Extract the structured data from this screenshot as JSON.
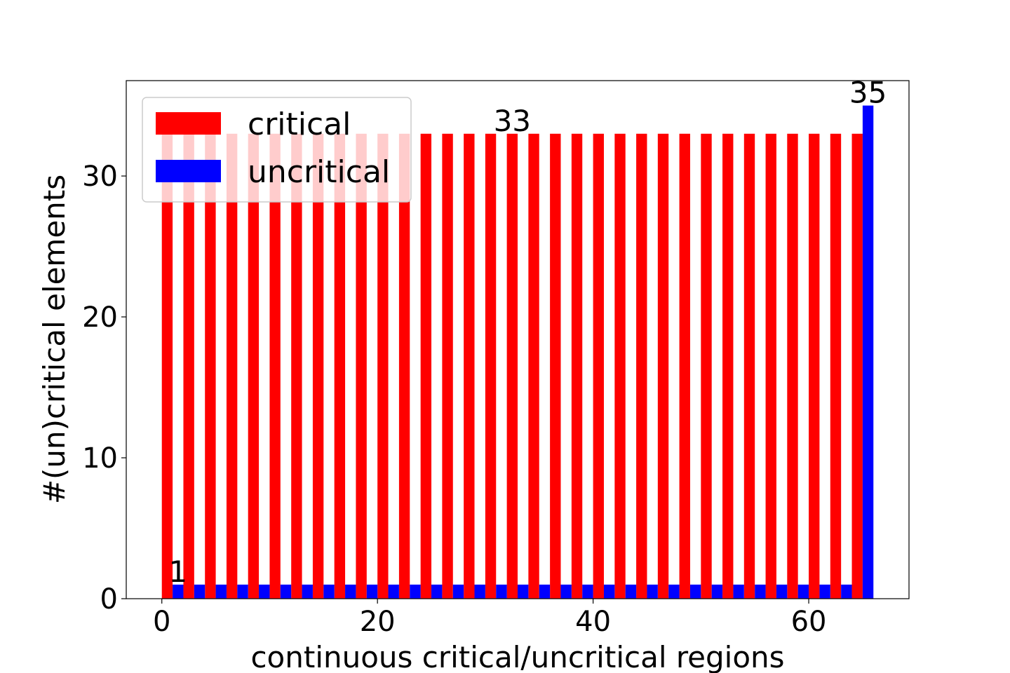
{
  "chart_data": {
    "type": "bar",
    "xlabel": "continuous critical/uncritical regions",
    "ylabel": "#(un)critical elements",
    "bar_width": 1,
    "series": [
      {
        "name": "critical",
        "color": "#ff0000",
        "x": [
          0,
          2,
          4,
          6,
          8,
          10,
          12,
          14,
          16,
          18,
          20,
          22,
          24,
          26,
          28,
          30,
          32,
          34,
          36,
          38,
          40,
          42,
          44,
          46,
          48,
          50,
          52,
          54,
          56,
          58,
          60,
          62,
          64
        ],
        "values": [
          33,
          33,
          33,
          33,
          33,
          33,
          33,
          33,
          33,
          33,
          33,
          33,
          33,
          33,
          33,
          33,
          33,
          33,
          33,
          33,
          33,
          33,
          33,
          33,
          33,
          33,
          33,
          33,
          33,
          33,
          33,
          33,
          33
        ]
      },
      {
        "name": "uncritical",
        "color": "#0000ff",
        "x": [
          1,
          3,
          5,
          7,
          9,
          11,
          13,
          15,
          17,
          19,
          21,
          23,
          25,
          27,
          29,
          31,
          33,
          35,
          37,
          39,
          41,
          43,
          45,
          47,
          49,
          51,
          53,
          55,
          57,
          59,
          61,
          63,
          65
        ],
        "values": [
          1,
          1,
          1,
          1,
          1,
          1,
          1,
          1,
          1,
          1,
          1,
          1,
          1,
          1,
          1,
          1,
          1,
          1,
          1,
          1,
          1,
          1,
          1,
          1,
          1,
          1,
          1,
          1,
          1,
          1,
          1,
          1,
          35
        ]
      }
    ],
    "annotations": [
      {
        "text": "1",
        "x": 1.5,
        "y": 1
      },
      {
        "text": "33",
        "x": 32.5,
        "y": 33
      },
      {
        "text": "35",
        "x": 65.5,
        "y": 35
      }
    ],
    "xlim": [
      -3.3,
      69.3
    ],
    "xticks": [
      0,
      20,
      40,
      60
    ],
    "ylim": [
      0,
      36.77
    ],
    "yticks": [
      0,
      10,
      20,
      30
    ],
    "legend": "upper left"
  }
}
